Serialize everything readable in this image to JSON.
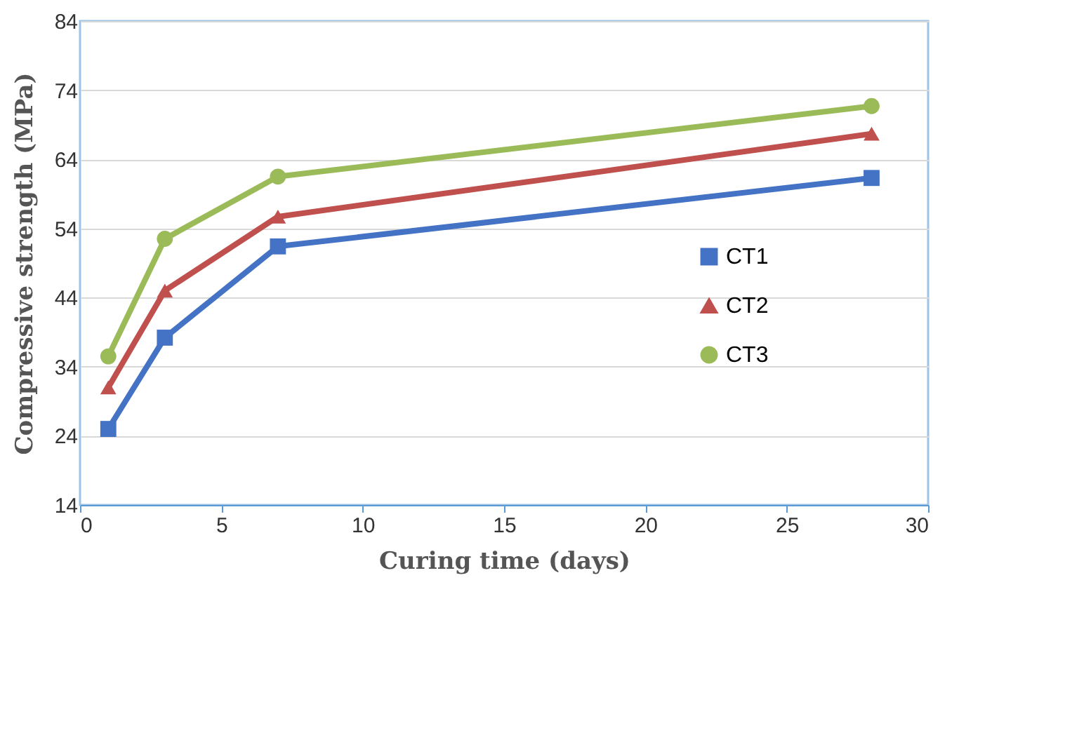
{
  "chart_data": {
    "type": "line",
    "xlabel": "Curing time (days)",
    "ylabel": "Compressive  strength (MPa)",
    "x": [
      1,
      3,
      7,
      28
    ],
    "series": [
      {
        "name": "CT1",
        "color": "#4472c4",
        "marker": "square",
        "values": [
          25.0,
          38.2,
          51.4,
          61.3
        ]
      },
      {
        "name": "CT2",
        "color": "#c0504d",
        "marker": "triangle",
        "values": [
          31.0,
          45.0,
          55.7,
          67.7
        ]
      },
      {
        "name": "CT3",
        "color": "#9bbb59",
        "marker": "circle",
        "values": [
          35.5,
          52.5,
          61.5,
          71.7
        ]
      }
    ],
    "xlim": [
      0,
      30
    ],
    "xticks": [
      0,
      5,
      10,
      15,
      20,
      25,
      30
    ],
    "ylim": [
      14,
      84
    ],
    "yticks": [
      14,
      24,
      34,
      44,
      54,
      64,
      74,
      84
    ],
    "grid": "y",
    "legend": "right",
    "line_style": "solid"
  }
}
